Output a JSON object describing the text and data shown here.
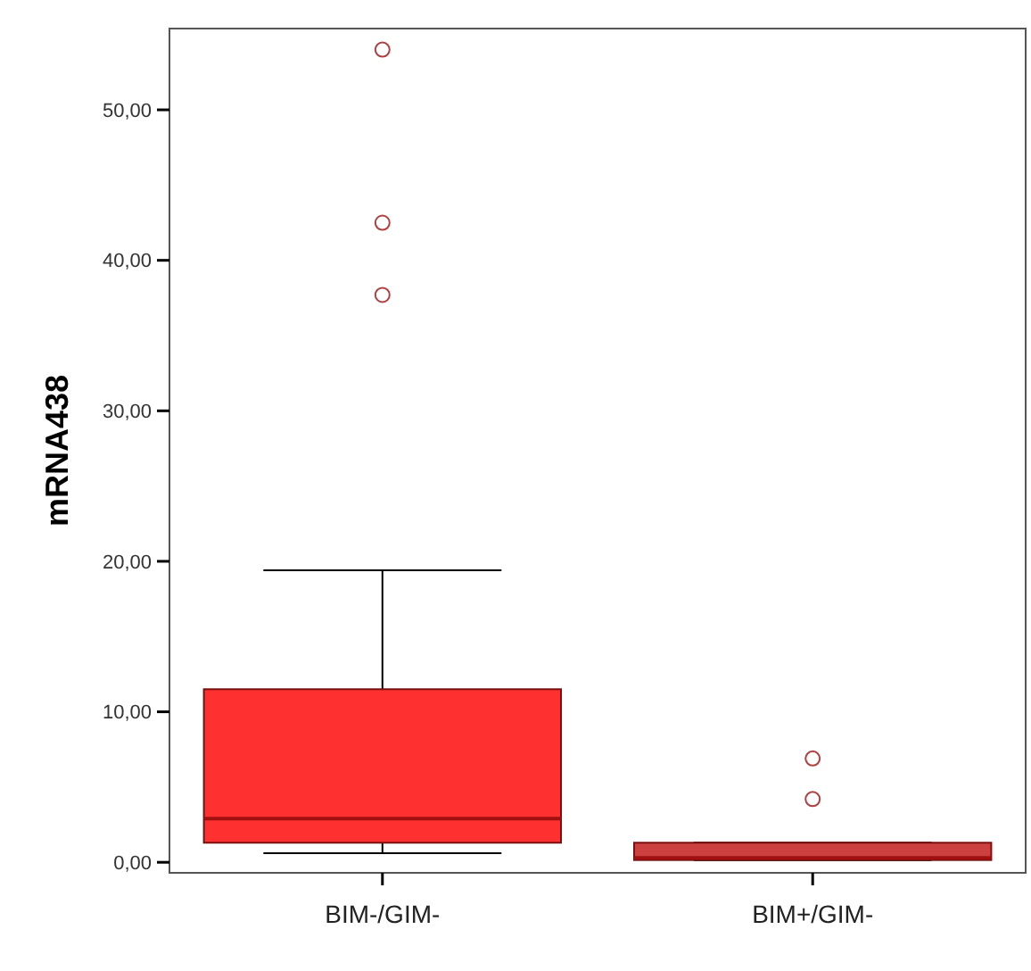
{
  "chart_data": {
    "type": "box",
    "ylabel": "mRNA438",
    "categories": [
      "BIM-/GIM-",
      "BIM+/GIM-"
    ],
    "boxes": [
      {
        "low": 0.6,
        "q1": 1.3,
        "median": 2.9,
        "q3": 11.5,
        "high": 19.4,
        "outliers": [
          37.7,
          42.5,
          54.0
        ]
      },
      {
        "low": 0.15,
        "q1": 0.15,
        "median": 0.3,
        "q3": 1.3,
        "high": 1.3,
        "outliers": [
          4.2,
          6.9
        ]
      }
    ],
    "colors": [
      "#ff3030",
      "#cc4040"
    ],
    "ylim": [
      -0.7,
      55.4
    ],
    "yticks": [
      {
        "value": 0,
        "label": "0,00"
      },
      {
        "value": 10,
        "label": "10,00"
      },
      {
        "value": 20,
        "label": "20,00"
      },
      {
        "value": 30,
        "label": "30,00"
      },
      {
        "value": 40,
        "label": "40,00"
      },
      {
        "value": 50,
        "label": "50,00"
      }
    ]
  }
}
